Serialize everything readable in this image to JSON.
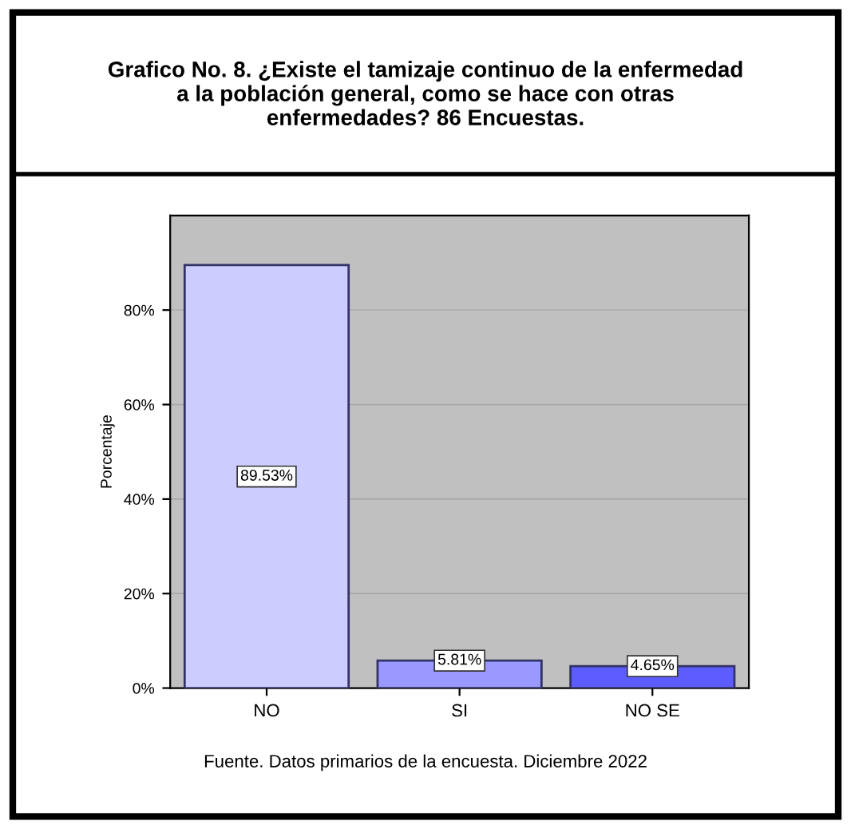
{
  "chart_data": {
    "type": "bar",
    "title": "Grafico No. 8. ¿Existe el tamizaje continuo de la enfermedad\na la población general, como se hace con otras\nenfermedades? 86 Encuestas.",
    "ylabel": "Porcentaje",
    "categories": [
      "NO",
      "SI",
      "NO SE"
    ],
    "values": [
      89.53,
      5.81,
      4.65
    ],
    "colors": [
      "#ccccff",
      "#9999ff",
      "#5c5cff"
    ],
    "value_labels": [
      "89.53%",
      "5.81%",
      "4.65%"
    ],
    "ylim": [
      0,
      100
    ],
    "yticks": [
      {
        "value": 0,
        "label": "0%"
      },
      {
        "value": 20,
        "label": "20%"
      },
      {
        "value": 40,
        "label": "40%"
      },
      {
        "value": 60,
        "label": "60%"
      },
      {
        "value": 80,
        "label": "80%"
      }
    ],
    "grid": "y",
    "legend": false,
    "annotations": [
      "Fuente. Datos primarios de la encuesta. Diciembre 2022"
    ]
  }
}
